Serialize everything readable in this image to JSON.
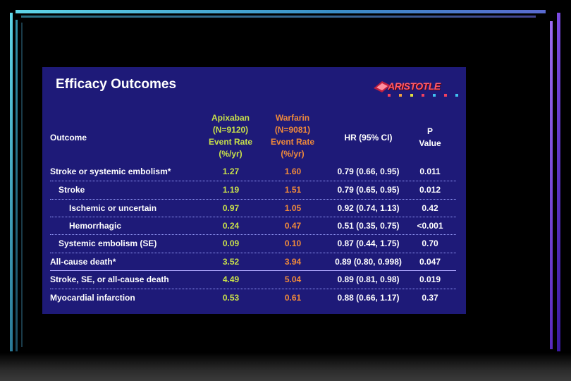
{
  "slide": {
    "title": "Efficacy Outcomes",
    "logo_text": "ARISTOTLE",
    "headers": {
      "outcome": "Outcome",
      "apixaban_name": "Apixaban",
      "apixaban_n": "(N=9120)",
      "apixaban_rate": "Event Rate",
      "apixaban_unit": "(%/yr)",
      "warfarin_name": "Warfarin",
      "warfarin_n": "(N=9081)",
      "warfarin_rate": "Event Rate",
      "warfarin_unit": "(%/yr)",
      "hr": "HR (95% CI)",
      "p_line1": "P",
      "p_line2": "Value"
    },
    "rows": [
      {
        "outcome": "Stroke or systemic embolism*",
        "apixaban": "1.27",
        "warfarin": "1.60",
        "hr": "0.79 (0.66, 0.95)",
        "p": "0.011"
      },
      {
        "outcome": "Stroke",
        "apixaban": "1.19",
        "warfarin": "1.51",
        "hr": "0.79 (0.65, 0.95)",
        "p": "0.012"
      },
      {
        "outcome": "Ischemic or uncertain",
        "apixaban": "0.97",
        "warfarin": "1.05",
        "hr": "0.92 (0.74, 1.13)",
        "p": "0.42"
      },
      {
        "outcome": "Hemorrhagic",
        "apixaban": "0.24",
        "warfarin": "0.47",
        "hr": "0.51 (0.35, 0.75)",
        "p": "<0.001"
      },
      {
        "outcome": "Systemic embolism (SE)",
        "apixaban": "0.09",
        "warfarin": "0.10",
        "hr": "0.87 (0.44, 1.75)",
        "p": "0.70"
      },
      {
        "outcome": "All-cause death*",
        "apixaban": "3.52",
        "warfarin": "3.94",
        "hr": "0.89 (0.80, 0.998)",
        "p": "0.047"
      },
      {
        "outcome": "Stroke, SE, or all-cause death",
        "apixaban": "4.49",
        "warfarin": "5.04",
        "hr": "0.89 (0.81, 0.98)",
        "p": "0.019"
      },
      {
        "outcome": "Myocardial infarction",
        "apixaban": "0.53",
        "warfarin": "0.61",
        "hr": "0.88 (0.66, 1.17)",
        "p": "0.37"
      }
    ]
  },
  "colors": {
    "slide_bg": "#1e1a78",
    "apixaban": "#c8e04a",
    "warfarin": "#f08a3a",
    "text": "#ffffff"
  }
}
